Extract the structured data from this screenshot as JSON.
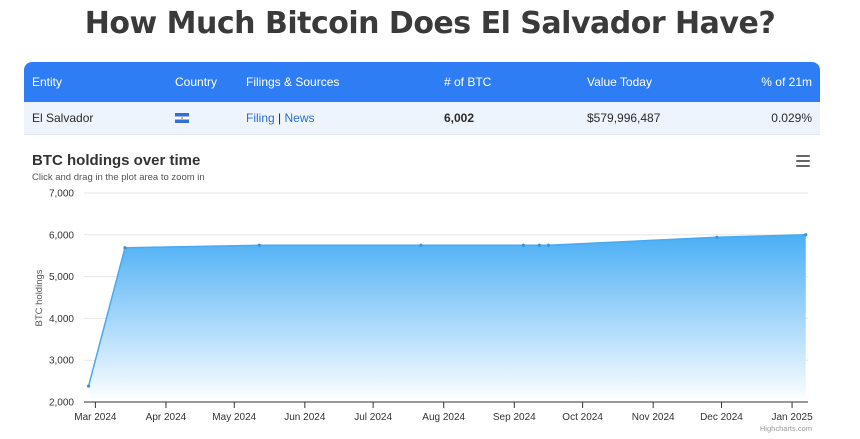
{
  "title": "How Much Bitcoin Does El Salvador Have?",
  "table": {
    "headers": {
      "entity": "Entity",
      "country": "Country",
      "filings": "Filings & Sources",
      "btc": "# of BTC",
      "value": "Value Today",
      "pct": "% of 21m"
    },
    "row": {
      "entity": "El Salvador",
      "country_flag": "el-salvador-flag",
      "filing_link": "Filing",
      "separator": "|",
      "news_link": "News",
      "btc": "6,002",
      "value": "$579,996,487",
      "pct": "0.029%"
    }
  },
  "chart_header": {
    "title": "BTC holdings over time",
    "subtitle": "Click and drag in the plot area to zoom in",
    "menu_icon": "hamburger-menu-icon",
    "credit": "Highcharts.com"
  },
  "colors": {
    "header_bg": "#2f7df4",
    "row_bg": "#eef4fc",
    "link": "#2b6fd6",
    "series_line": "#4aa9f0",
    "area_top": "#4aaef5",
    "area_bottom": "#ffffff"
  },
  "chart_data": {
    "type": "area",
    "title": "BTC holdings over time",
    "xlabel": "",
    "ylabel": "BTC holdings",
    "ylim": [
      2000,
      7000
    ],
    "yticks": [
      2000,
      3000,
      4000,
      5000,
      6000,
      7000
    ],
    "ytick_labels": [
      "2,000",
      "3,000",
      "4,000",
      "5,000",
      "6,000",
      "7,000"
    ],
    "xlim": [
      "2024-02-25",
      "2025-01-08"
    ],
    "xticks": [
      "2024-03-01",
      "2024-04-01",
      "2024-05-01",
      "2024-06-01",
      "2024-07-01",
      "2024-08-01",
      "2024-09-01",
      "2024-10-01",
      "2024-11-01",
      "2024-12-01",
      "2025-01-01"
    ],
    "xtick_labels": [
      "Mar 2024",
      "Apr 2024",
      "May 2024",
      "Jun 2024",
      "Jul 2024",
      "Aug 2024",
      "Sep 2024",
      "Oct 2024",
      "Nov 2024",
      "Dec 2024",
      "Jan 2025"
    ],
    "grid": true,
    "legend": "none",
    "series": [
      {
        "x": [
          "2024-02-27",
          "2024-03-14",
          "2024-05-12",
          "2024-07-22",
          "2024-09-05",
          "2024-09-12",
          "2024-09-16",
          "2024-11-29",
          "2025-01-07"
        ],
        "y": [
          2381,
          5690,
          5750,
          5750,
          5750,
          5750,
          5750,
          5940,
          6002
        ]
      }
    ]
  }
}
